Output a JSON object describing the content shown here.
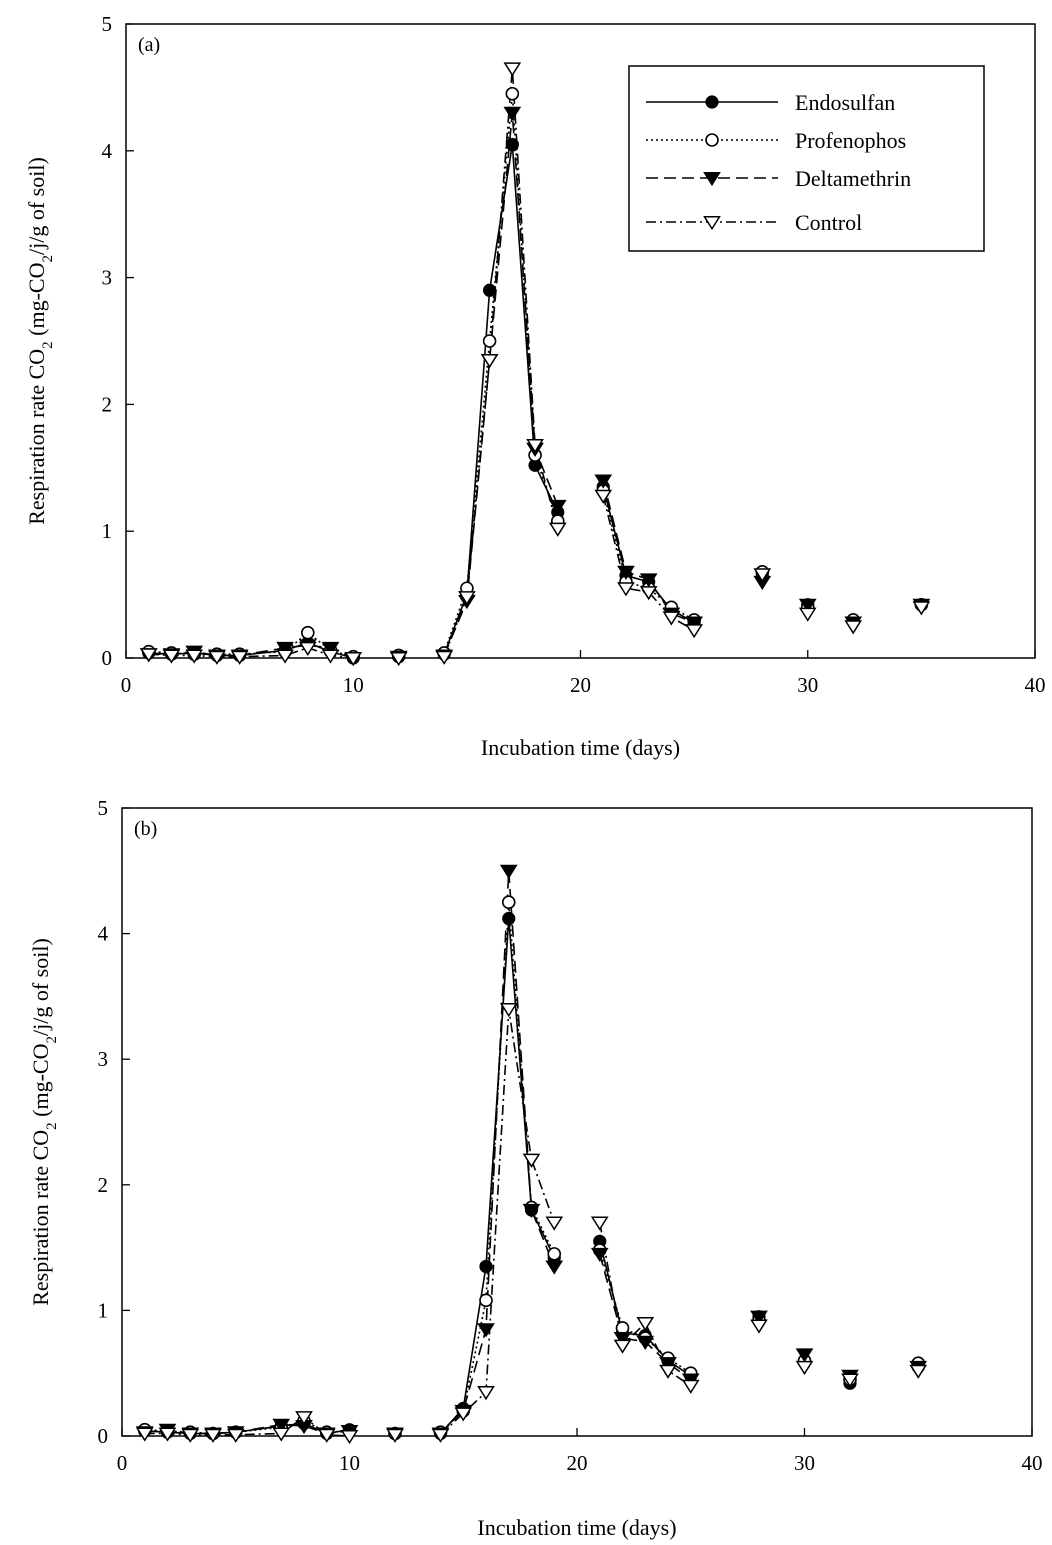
{
  "chart_data": [
    {
      "type": "line",
      "panel_label": "(a)",
      "xlabel": "Incubation time (days)",
      "ylabel_prefix": "Respiration rate CO",
      "ylabel_sub": "2",
      "ylabel_mid": " (mg-CO",
      "ylabel_sub2": "2",
      "ylabel_suffix": "/j/g of soil)",
      "xlim": [
        0,
        40
      ],
      "ylim": [
        0,
        5
      ],
      "xticks": [
        0,
        10,
        20,
        30,
        40
      ],
      "yticks": [
        0,
        1,
        2,
        3,
        4,
        5
      ],
      "grid": false,
      "legend_position": "top-right",
      "series": [
        {
          "name": "Endosulfan",
          "marker": "filled-circle",
          "dash": "solid",
          "x": [
            1,
            2,
            3,
            4,
            5,
            7,
            8,
            9,
            10,
            12,
            14,
            15,
            16,
            17,
            18,
            19,
            21,
            22,
            23,
            24,
            25,
            28,
            30,
            32,
            35
          ],
          "y": [
            0.04,
            0.03,
            0.04,
            0.02,
            0.02,
            0.06,
            0.12,
            0.05,
            0.0,
            0.01,
            0.03,
            0.5,
            2.9,
            4.05,
            1.52,
            1.15,
            1.35,
            0.65,
            0.6,
            0.38,
            0.28,
            0.65,
            0.42,
            0.3,
            0.42
          ]
        },
        {
          "name": "Profenophos",
          "marker": "open-circle",
          "dash": "dotted",
          "x": [
            1,
            2,
            3,
            4,
            5,
            7,
            8,
            9,
            10,
            12,
            14,
            15,
            16,
            17,
            18,
            19,
            21,
            22,
            23,
            24,
            25,
            28,
            30,
            32,
            35
          ],
          "y": [
            0.05,
            0.04,
            0.03,
            0.03,
            0.03,
            0.05,
            0.2,
            0.06,
            0.01,
            0.02,
            0.04,
            0.55,
            2.5,
            4.45,
            1.6,
            1.08,
            1.32,
            0.6,
            0.55,
            0.4,
            0.3,
            0.68,
            0.4,
            0.3,
            0.42
          ]
        },
        {
          "name": "Deltamethrin",
          "marker": "filled-triangle-down",
          "dash": "dashed",
          "x": [
            1,
            2,
            3,
            4,
            5,
            7,
            8,
            9,
            10,
            12,
            14,
            15,
            16,
            17,
            18,
            19,
            21,
            22,
            23,
            24,
            25,
            28,
            30,
            32,
            35
          ],
          "y": [
            0.03,
            0.03,
            0.05,
            0.02,
            0.02,
            0.08,
            0.1,
            0.08,
            0.0,
            0.01,
            0.02,
            0.45,
            2.35,
            4.3,
            1.65,
            1.2,
            1.4,
            0.68,
            0.62,
            0.35,
            0.28,
            0.6,
            0.42,
            0.28,
            0.42
          ]
        },
        {
          "name": "Control",
          "marker": "open-triangle-down",
          "dash": "dash-dot",
          "x": [
            1,
            2,
            3,
            4,
            5,
            7,
            8,
            9,
            10,
            12,
            14,
            15,
            16,
            17,
            18,
            19,
            21,
            22,
            23,
            24,
            25,
            28,
            30,
            32,
            35
          ],
          "y": [
            0.03,
            0.02,
            0.02,
            0.01,
            0.01,
            0.02,
            0.08,
            0.02,
            0.0,
            0.0,
            0.01,
            0.48,
            2.35,
            4.65,
            1.68,
            1.02,
            1.28,
            0.55,
            0.52,
            0.32,
            0.22,
            0.66,
            0.35,
            0.25,
            0.4
          ]
        }
      ]
    },
    {
      "type": "line",
      "panel_label": "(b)",
      "xlabel": "Incubation time (days)",
      "ylabel_prefix": "Respiration rate CO",
      "ylabel_sub": "2",
      "ylabel_mid": " (mg-CO",
      "ylabel_sub2": "2",
      "ylabel_suffix": "/j/g of soil)",
      "xlim": [
        0,
        40
      ],
      "ylim": [
        0,
        5
      ],
      "xticks": [
        0,
        10,
        20,
        30,
        40
      ],
      "yticks": [
        0,
        1,
        2,
        3,
        4,
        5
      ],
      "grid": false,
      "legend_position": "none",
      "series": [
        {
          "name": "Endosulfan",
          "marker": "filled-circle",
          "dash": "solid",
          "x": [
            1,
            2,
            3,
            4,
            5,
            7,
            8,
            9,
            10,
            12,
            14,
            15,
            16,
            17,
            18,
            19,
            21,
            22,
            23,
            24,
            25,
            28,
            30,
            32,
            35
          ],
          "y": [
            0.04,
            0.03,
            0.02,
            0.02,
            0.03,
            0.08,
            0.1,
            0.02,
            0.05,
            0.02,
            0.02,
            0.22,
            1.35,
            4.12,
            1.8,
            1.42,
            1.55,
            0.82,
            0.8,
            0.6,
            0.48,
            0.95,
            0.6,
            0.42,
            0.55
          ]
        },
        {
          "name": "Profenophos",
          "marker": "open-circle",
          "dash": "dotted",
          "x": [
            1,
            2,
            3,
            4,
            5,
            7,
            8,
            9,
            10,
            12,
            14,
            15,
            16,
            17,
            18,
            19,
            21,
            22,
            23,
            24,
            25,
            28,
            30,
            32,
            35
          ],
          "y": [
            0.05,
            0.04,
            0.03,
            0.02,
            0.03,
            0.07,
            0.12,
            0.03,
            0.04,
            0.02,
            0.03,
            0.2,
            1.08,
            4.25,
            1.82,
            1.45,
            1.48,
            0.86,
            0.78,
            0.62,
            0.5,
            0.92,
            0.6,
            0.45,
            0.58
          ]
        },
        {
          "name": "Deltamethrin",
          "marker": "filled-triangle-down",
          "dash": "dashed",
          "x": [
            1,
            2,
            3,
            4,
            5,
            7,
            8,
            9,
            10,
            12,
            14,
            15,
            16,
            17,
            18,
            19,
            21,
            22,
            23,
            24,
            25,
            28,
            30,
            32,
            35
          ],
          "y": [
            0.03,
            0.05,
            0.02,
            0.02,
            0.03,
            0.09,
            0.08,
            0.02,
            0.04,
            0.02,
            0.02,
            0.2,
            0.85,
            4.5,
            1.8,
            1.35,
            1.45,
            0.78,
            0.75,
            0.58,
            0.45,
            0.95,
            0.65,
            0.48,
            0.55
          ]
        },
        {
          "name": "Control",
          "marker": "open-triangle-down",
          "dash": "dash-dot",
          "x": [
            1,
            2,
            3,
            4,
            5,
            7,
            8,
            9,
            10,
            12,
            14,
            15,
            16,
            17,
            18,
            19,
            21,
            22,
            23,
            24,
            25,
            28,
            30,
            32,
            35
          ],
          "y": [
            0.02,
            0.02,
            0.01,
            0.01,
            0.01,
            0.02,
            0.15,
            0.01,
            0.0,
            0.01,
            0.01,
            0.18,
            0.35,
            3.4,
            2.2,
            1.7,
            1.7,
            0.72,
            0.9,
            0.52,
            0.4,
            0.88,
            0.55,
            0.45,
            0.52
          ]
        }
      ]
    }
  ]
}
